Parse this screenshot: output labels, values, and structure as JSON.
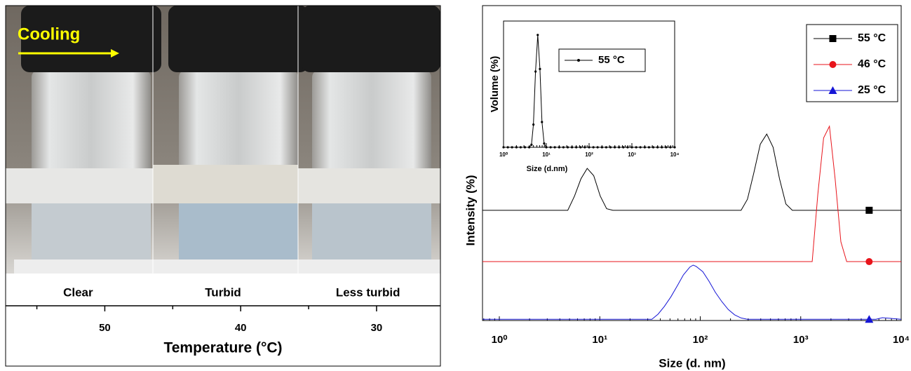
{
  "chart_data": [
    {
      "type": "axis",
      "annotation": "Cooling",
      "labels": [
        "Clear",
        "Turbid",
        "Less turbid"
      ],
      "xlabel": "Temperature (°C)",
      "xlim": [
        57.3,
        25.3
      ],
      "xticks": [
        50,
        40,
        30
      ],
      "minor_xticks": [
        55,
        45,
        35
      ]
    },
    {
      "type": "line",
      "xlabel": "Size (d. nm)",
      "ylabel": "Intensity (%)",
      "log_x": true,
      "xlim": [
        0.68,
        10000
      ],
      "ylim": [
        0,
        100
      ],
      "xticks": [
        {
          "value": 1,
          "label": "10⁰"
        },
        {
          "value": 10,
          "label": "10¹"
        },
        {
          "value": 100,
          "label": "10²"
        },
        {
          "value": 1000,
          "label": "10³"
        },
        {
          "value": 10000,
          "label": "10⁴"
        }
      ],
      "legend": "top-right",
      "series": [
        {
          "name": "55 °C",
          "color": "#000000",
          "marker": "square",
          "marker_x": 4800,
          "x": [
            0.68,
            4.8,
            5.6,
            6.5,
            7.5,
            8.7,
            10.1,
            11.7,
            13.5,
            255,
            295,
            342,
            396,
            459,
            531,
            615,
            712,
            825,
            10000
          ],
          "values": [
            35,
            35,
            39.5,
            45,
            48.3,
            46,
            39.5,
            35.5,
            35,
            35,
            38.5,
            47,
            56,
            59.2,
            55,
            45,
            37,
            35,
            35
          ]
        },
        {
          "name": "46 °C",
          "color": "#e8141b",
          "marker": "circle",
          "marker_x": 4800,
          "x": [
            0.68,
            1300,
            1480,
            1690,
            1930,
            2200,
            2510,
            2870,
            10000
          ],
          "values": [
            18.7,
            18.7,
            40,
            58,
            61.7,
            45,
            25,
            18.7,
            18.7
          ]
        },
        {
          "name": "25 °C",
          "color": "#1515d6",
          "marker": "triangle",
          "marker_x": 4800,
          "x": [
            0.68,
            33,
            38,
            44,
            51,
            59,
            68,
            79,
            85,
            91,
            106,
            122,
            141,
            164,
            190,
            220,
            255,
            295,
            4000,
            5600,
            6500,
            10000
          ],
          "values": [
            0.4,
            0.4,
            2,
            4.5,
            7.5,
            11,
            14.5,
            17,
            17.6,
            17.2,
            15.5,
            12.5,
            9,
            6,
            3.5,
            1.8,
            0.8,
            0.4,
            0.4,
            0.4,
            0.9,
            0.4
          ]
        }
      ]
    },
    {
      "type": "line",
      "xlabel": "Size (d.nm)",
      "ylabel": "Volume (%)",
      "log_x": true,
      "xlim": [
        1,
        10000
      ],
      "ylim": [
        0,
        100
      ],
      "xticks": [
        {
          "value": 1,
          "label": "10⁰"
        },
        {
          "value": 10,
          "label": "10¹"
        },
        {
          "value": 100,
          "label": "10²"
        },
        {
          "value": 1000,
          "label": "10³"
        },
        {
          "value": 10000,
          "label": "10⁴"
        }
      ],
      "legend": "top-left",
      "series": [
        {
          "name": "55 °C",
          "color": "#000000",
          "marker": "dot",
          "x": [
            1,
            1.26,
            1.58,
            2,
            2.51,
            3.16,
            3.98,
            4.5,
            5.0,
            5.6,
            6.3,
            7.1,
            7.9,
            8.9,
            10,
            12.6,
            15.8,
            20,
            25.1,
            31.6,
            39.8,
            50.1,
            63.1,
            79.4,
            100,
            126,
            158,
            200,
            251,
            316,
            398,
            501,
            631,
            794,
            1000,
            1260,
            1580,
            2000,
            2510,
            3160,
            3980,
            5010,
            6310,
            7940,
            10000
          ],
          "values": [
            0,
            0,
            0,
            0,
            0,
            0,
            0,
            2,
            18,
            60,
            89,
            62,
            20,
            3,
            0,
            0,
            0,
            0,
            0,
            0,
            0,
            0,
            0,
            0,
            0,
            0,
            0,
            0,
            0,
            0,
            0,
            0,
            0,
            0,
            0,
            0,
            0,
            0,
            0,
            0,
            0,
            0,
            0,
            0,
            0
          ]
        }
      ]
    }
  ]
}
